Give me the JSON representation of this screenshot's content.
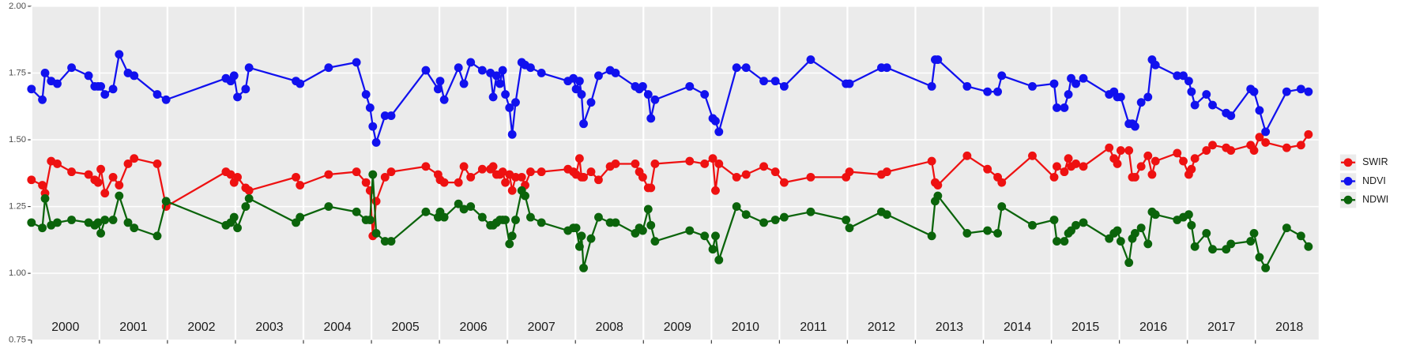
{
  "chart_data": {
    "type": "line",
    "x": [
      2000,
      2000.16,
      2000.2,
      2000.29,
      2000.38,
      2000.59,
      2000.84,
      2000.93,
      2000.98,
      2001.02,
      2001.08,
      2001.2,
      2001.29,
      2001.42,
      2001.51,
      2001.85,
      2001.98,
      2002.86,
      2002.93,
      2002.98,
      2003.03,
      2003.15,
      2003.2,
      2003.89,
      2003.95,
      2004.37,
      2004.78,
      2004.92,
      2004.98,
      2005.02,
      2005.07,
      2005.2,
      2005.29,
      2005.8,
      2005.98,
      2006.01,
      2006.07,
      2006.28,
      2006.36,
      2006.46,
      2006.63,
      2006.75,
      2006.79,
      2006.84,
      2006.89,
      2006.93,
      2006.97,
      2007.03,
      2007.07,
      2007.12,
      2007.21,
      2007.26,
      2007.34,
      2007.5,
      2007.89,
      2007.97,
      2008.01,
      2008.06,
      2008.09,
      2008.12,
      2008.23,
      2008.34,
      2008.51,
      2008.59,
      2008.88,
      2008.94,
      2008.99,
      2009.07,
      2009.11,
      2009.17,
      2009.68,
      2009.9,
      2010.02,
      2010.06,
      2010.11,
      2010.37,
      2010.51,
      2010.77,
      2010.94,
      2011.07,
      2011.46,
      2011.98,
      2012.03,
      2012.5,
      2012.58,
      2013.24,
      2013.29,
      2013.33,
      2013.76,
      2014.06,
      2014.21,
      2014.27,
      2014.72,
      2015.04,
      2015.08,
      2015.19,
      2015.25,
      2015.29,
      2015.36,
      2015.47,
      2015.85,
      2015.92,
      2015.97,
      2016.02,
      2016.14,
      2016.19,
      2016.23,
      2016.32,
      2016.42,
      2016.48,
      2016.53,
      2016.85,
      2016.94,
      2017.02,
      2017.06,
      2017.11,
      2017.28,
      2017.37,
      2017.57,
      2017.64,
      2017.93,
      2017.98,
      2018.06,
      2018.15,
      2018.46,
      2018.67,
      2018.78
    ],
    "series": [
      {
        "name": "SWIR",
        "color": "#ee1111",
        "values": [
          1.35,
          1.33,
          1.3,
          1.42,
          1.41,
          1.38,
          1.37,
          1.35,
          1.34,
          1.39,
          1.3,
          1.36,
          1.33,
          1.41,
          1.43,
          1.41,
          1.25,
          1.38,
          1.37,
          1.34,
          1.36,
          1.32,
          1.31,
          1.36,
          1.33,
          1.37,
          1.38,
          1.34,
          1.31,
          1.14,
          1.27,
          1.36,
          1.38,
          1.4,
          1.37,
          1.35,
          1.34,
          1.34,
          1.4,
          1.36,
          1.39,
          1.39,
          1.4,
          1.37,
          1.37,
          1.38,
          1.34,
          1.37,
          1.31,
          1.36,
          1.36,
          1.33,
          1.38,
          1.38,
          1.39,
          1.38,
          1.37,
          1.43,
          1.36,
          1.36,
          1.38,
          1.35,
          1.4,
          1.41,
          1.41,
          1.38,
          1.36,
          1.32,
          1.32,
          1.41,
          1.42,
          1.41,
          1.43,
          1.31,
          1.41,
          1.36,
          1.37,
          1.4,
          1.38,
          1.34,
          1.36,
          1.36,
          1.38,
          1.37,
          1.38,
          1.42,
          1.34,
          1.33,
          1.44,
          1.39,
          1.36,
          1.34,
          1.44,
          1.36,
          1.4,
          1.38,
          1.43,
          1.4,
          1.41,
          1.4,
          1.47,
          1.43,
          1.41,
          1.46,
          1.46,
          1.36,
          1.36,
          1.4,
          1.44,
          1.37,
          1.42,
          1.45,
          1.42,
          1.37,
          1.39,
          1.43,
          1.46,
          1.48,
          1.47,
          1.46,
          1.48,
          1.46,
          1.51,
          1.49,
          1.47,
          1.48,
          1.52
        ]
      },
      {
        "name": "NDVI",
        "color": "#1111ee",
        "values": [
          1.69,
          1.65,
          1.75,
          1.72,
          1.71,
          1.77,
          1.74,
          1.7,
          1.7,
          1.7,
          1.67,
          1.69,
          1.82,
          1.75,
          1.74,
          1.67,
          1.65,
          1.73,
          1.72,
          1.74,
          1.66,
          1.69,
          1.77,
          1.72,
          1.71,
          1.77,
          1.79,
          1.67,
          1.62,
          1.55,
          1.49,
          1.59,
          1.59,
          1.76,
          1.69,
          1.72,
          1.65,
          1.77,
          1.71,
          1.79,
          1.76,
          1.75,
          1.66,
          1.74,
          1.71,
          1.76,
          1.67,
          1.62,
          1.52,
          1.64,
          1.79,
          1.78,
          1.77,
          1.75,
          1.72,
          1.73,
          1.69,
          1.72,
          1.67,
          1.56,
          1.64,
          1.74,
          1.76,
          1.75,
          1.7,
          1.69,
          1.7,
          1.67,
          1.58,
          1.65,
          1.7,
          1.67,
          1.58,
          1.57,
          1.53,
          1.77,
          1.77,
          1.72,
          1.72,
          1.7,
          1.8,
          1.71,
          1.71,
          1.77,
          1.77,
          1.7,
          1.8,
          1.8,
          1.7,
          1.68,
          1.68,
          1.74,
          1.7,
          1.71,
          1.62,
          1.62,
          1.67,
          1.73,
          1.71,
          1.73,
          1.67,
          1.68,
          1.66,
          1.66,
          1.56,
          1.56,
          1.55,
          1.64,
          1.66,
          1.8,
          1.78,
          1.74,
          1.74,
          1.72,
          1.68,
          1.63,
          1.67,
          1.63,
          1.6,
          1.59,
          1.69,
          1.68,
          1.61,
          1.53,
          1.68,
          1.69,
          1.68
        ]
      },
      {
        "name": "NDWI",
        "color": "#0b640b",
        "values": [
          1.19,
          1.17,
          1.28,
          1.18,
          1.19,
          1.2,
          1.19,
          1.18,
          1.19,
          1.15,
          1.2,
          1.2,
          1.29,
          1.19,
          1.17,
          1.14,
          1.27,
          1.18,
          1.19,
          1.21,
          1.17,
          1.25,
          1.28,
          1.19,
          1.21,
          1.25,
          1.23,
          1.2,
          1.2,
          1.37,
          1.15,
          1.12,
          1.12,
          1.23,
          1.21,
          1.23,
          1.21,
          1.26,
          1.24,
          1.25,
          1.21,
          1.18,
          1.18,
          1.19,
          1.2,
          1.2,
          1.2,
          1.11,
          1.14,
          1.2,
          1.31,
          1.29,
          1.21,
          1.19,
          1.16,
          1.17,
          1.17,
          1.1,
          1.14,
          1.02,
          1.13,
          1.21,
          1.19,
          1.19,
          1.15,
          1.17,
          1.16,
          1.24,
          1.18,
          1.12,
          1.16,
          1.14,
          1.09,
          1.14,
          1.05,
          1.25,
          1.22,
          1.19,
          1.2,
          1.21,
          1.23,
          1.2,
          1.17,
          1.23,
          1.22,
          1.14,
          1.27,
          1.29,
          1.15,
          1.16,
          1.15,
          1.25,
          1.18,
          1.2,
          1.12,
          1.12,
          1.15,
          1.16,
          1.18,
          1.19,
          1.13,
          1.15,
          1.16,
          1.12,
          1.04,
          1.13,
          1.15,
          1.17,
          1.11,
          1.23,
          1.22,
          1.2,
          1.21,
          1.22,
          1.18,
          1.1,
          1.15,
          1.09,
          1.09,
          1.11,
          1.12,
          1.15,
          1.06,
          1.02,
          1.17,
          1.14,
          1.1
        ]
      }
    ],
    "xlim": [
      2000,
      2018.93
    ],
    "xticks": [
      2000,
      2001,
      2002,
      2003,
      2004,
      2005,
      2006,
      2007,
      2008,
      2009,
      2010,
      2011,
      2012,
      2013,
      2014,
      2015,
      2016,
      2017,
      2018
    ],
    "ylim": [
      0.75,
      2.0
    ],
    "yticks": [
      {
        "value": 0.75,
        "label": "0.75"
      },
      {
        "value": 1,
        "label": "1.00"
      },
      {
        "value": 1.25,
        "label": "1.25"
      },
      {
        "value": 1.5,
        "label": "1.50"
      },
      {
        "value": 1.75,
        "label": "1.75"
      },
      {
        "value": 2,
        "label": "2.00"
      }
    ],
    "grid": true,
    "legend": "right"
  }
}
